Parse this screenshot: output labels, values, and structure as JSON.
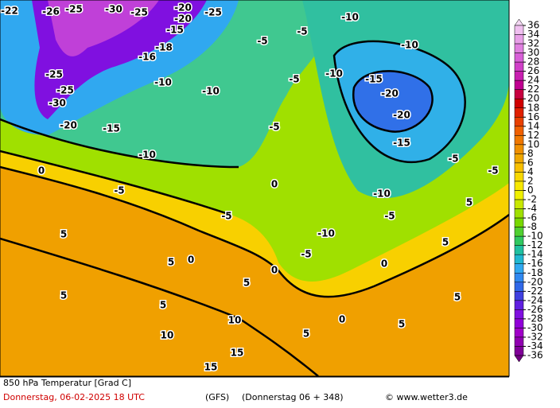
{
  "legend": {
    "ticks": [
      36,
      34,
      32,
      30,
      28,
      26,
      24,
      22,
      20,
      18,
      16,
      14,
      12,
      10,
      8,
      6,
      4,
      2,
      0,
      -2,
      -4,
      -6,
      -8,
      -10,
      -12,
      -14,
      -16,
      -18,
      -20,
      -22,
      -24,
      -26,
      -28,
      -30,
      -32,
      -34,
      -36
    ],
    "colors": [
      "#f4d8f4",
      "#f0c0f0",
      "#e8a0e8",
      "#e080e0",
      "#d860d8",
      "#d040c8",
      "#c820b0",
      "#c00090",
      "#c80040",
      "#d00000",
      "#e02000",
      "#e84000",
      "#f06000",
      "#f07800",
      "#f09000",
      "#f0a800",
      "#f8c000",
      "#f8d800",
      "#f8e800",
      "#f0f000",
      "#c8e800",
      "#a0e000",
      "#78d800",
      "#50d030",
      "#30c860",
      "#20c0a0",
      "#20b8d0",
      "#30a8f0",
      "#3088f0",
      "#3068e8",
      "#4040e0",
      "#6020e0",
      "#8010e0",
      "#9000d8",
      "#a000c8",
      "#9000b0",
      "#800098",
      "#700080"
    ]
  },
  "contour_labels": [
    -22,
    -26,
    -25,
    -30,
    -25,
    -20,
    -25,
    -20,
    -15,
    -18,
    -16,
    -25,
    -25,
    -30,
    -20,
    -15,
    -10,
    -5,
    0,
    -5,
    5,
    0,
    5,
    5,
    5,
    5,
    10,
    10,
    15,
    15,
    -5,
    -5,
    -10,
    -10,
    -20,
    -20,
    -15,
    -10,
    -15,
    -10,
    -5,
    -5,
    -5,
    0,
    -10,
    -5,
    0,
    0,
    0,
    5,
    5,
    5,
    5,
    5,
    -5,
    -10,
    -10,
    -5
  ],
  "footer": {
    "title": "850 hPa Temperatur [Grad C]",
    "date": "Donnerstag, 06-02-2025   18 UTC",
    "model": "(GFS)",
    "run": "(Donnerstag 06 + 348)",
    "copyright": "© www.wetter3.de"
  }
}
